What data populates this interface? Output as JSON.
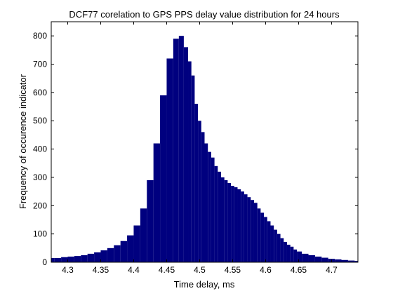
{
  "chart_data": {
    "type": "bar",
    "title": "DCF77 corelation to GPS PPS delay value distribution for 24 hours",
    "xlabel": "Time delay, ms",
    "ylabel": "Frequency of occurence indicator",
    "xlim": [
      4.275,
      4.74
    ],
    "ylim": [
      0,
      850
    ],
    "xticks": [
      4.3,
      4.35,
      4.4,
      4.45,
      4.5,
      4.55,
      4.6,
      4.65,
      4.7
    ],
    "xtick_labels": [
      "4.3",
      "4.35",
      "4.4",
      "4.45",
      "4.5",
      "4.55",
      "4.6",
      "4.65",
      "4.7"
    ],
    "yticks": [
      0,
      100,
      200,
      300,
      400,
      500,
      600,
      700,
      800
    ],
    "ytick_labels": [
      "0",
      "100",
      "200",
      "300",
      "400",
      "500",
      "600",
      "700",
      "800"
    ],
    "color": "#00007f",
    "grid": false,
    "series": [
      {
        "x": [
          4.275,
          4.285,
          4.295,
          4.305,
          4.315,
          4.325,
          4.335,
          4.345,
          4.355,
          4.365,
          4.375,
          4.385,
          4.395,
          4.405,
          4.415,
          4.425,
          4.435,
          4.445,
          4.455,
          4.465,
          4.472,
          4.48,
          4.485,
          4.49,
          4.495,
          4.5,
          4.505,
          4.51,
          4.515,
          4.52,
          4.525,
          4.53,
          4.535,
          4.54,
          4.545,
          4.55,
          4.555,
          4.56,
          4.565,
          4.57,
          4.575,
          4.58,
          4.585,
          4.59,
          4.595,
          4.6,
          4.605,
          4.61,
          4.615,
          4.62,
          4.625,
          4.63,
          4.635,
          4.64,
          4.645,
          4.65,
          4.66,
          4.67,
          4.68,
          4.69,
          4.7,
          4.71,
          4.72,
          4.73,
          4.74
        ],
        "values": [
          15,
          15,
          18,
          20,
          22,
          25,
          30,
          35,
          42,
          50,
          60,
          75,
          95,
          130,
          190,
          290,
          420,
          590,
          720,
          790,
          800,
          760,
          710,
          660,
          560,
          500,
          460,
          420,
          390,
          370,
          340,
          320,
          300,
          290,
          280,
          270,
          265,
          258,
          250,
          240,
          230,
          220,
          210,
          190,
          175,
          160,
          145,
          130,
          115,
          100,
          85,
          72,
          62,
          55,
          45,
          38,
          30,
          25,
          20,
          16,
          12,
          10,
          8,
          6,
          5
        ]
      }
    ]
  }
}
